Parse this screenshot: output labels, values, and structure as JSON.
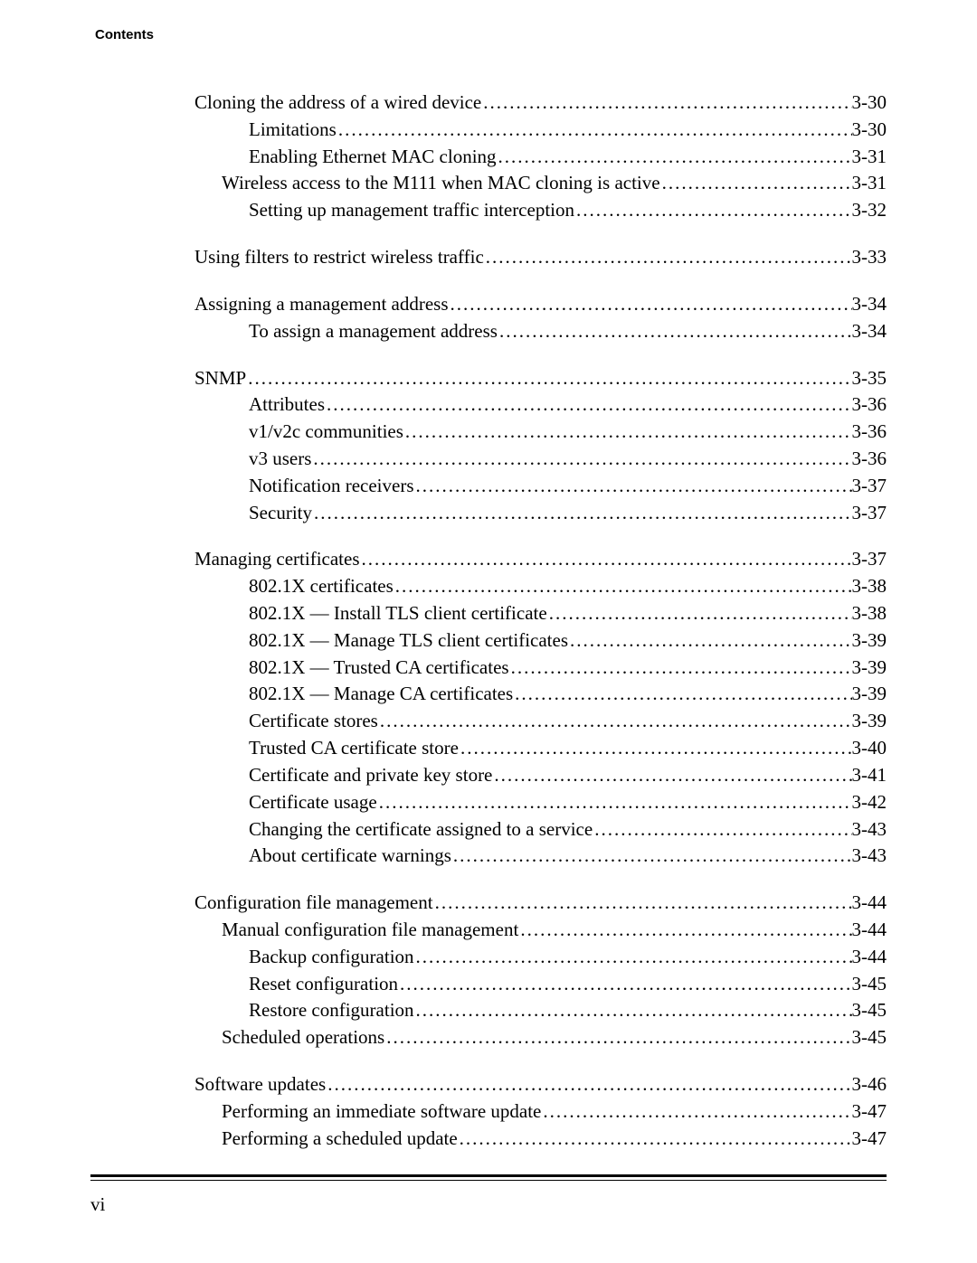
{
  "header": {
    "label": "Contents"
  },
  "footer": {
    "page_number": "vi"
  },
  "toc_sections": [
    {
      "rows": [
        {
          "level": 0,
          "label": "Cloning the address of a wired device",
          "page": "3-30"
        },
        {
          "level": 2,
          "label": "Limitations",
          "page": "3-30"
        },
        {
          "level": 2,
          "label": "Enabling Ethernet MAC cloning",
          "page": "3-31"
        },
        {
          "level": 1,
          "label": "Wireless access to the M111 when MAC cloning is active",
          "page": "3-31"
        },
        {
          "level": 2,
          "label": "Setting up management traffic interception",
          "page": "3-32"
        }
      ]
    },
    {
      "rows": [
        {
          "level": 0,
          "label": "Using filters to restrict wireless traffic",
          "page": "3-33"
        }
      ]
    },
    {
      "rows": [
        {
          "level": 0,
          "label": "Assigning a management address",
          "page": "3-34"
        },
        {
          "level": 2,
          "label": "To assign a management address",
          "page": "3-34"
        }
      ]
    },
    {
      "rows": [
        {
          "level": 0,
          "label": "SNMP",
          "page": "3-35"
        },
        {
          "level": 2,
          "label": "Attributes",
          "page": "3-36"
        },
        {
          "level": 2,
          "label": "v1/v2c communities",
          "page": "3-36"
        },
        {
          "level": 2,
          "label": "v3 users",
          "page": "3-36"
        },
        {
          "level": 2,
          "label": "Notification receivers",
          "page": "3-37"
        },
        {
          "level": 2,
          "label": "Security",
          "page": "3-37"
        }
      ]
    },
    {
      "rows": [
        {
          "level": 0,
          "label": "Managing certificates",
          "page": "3-37"
        },
        {
          "level": 2,
          "label": "802.1X certificates",
          "page": "3-38"
        },
        {
          "level": 3,
          "label": "802.1X — Install TLS client certificate",
          "page": "3-38"
        },
        {
          "level": 3,
          "label": "802.1X — Manage TLS client certificates",
          "page": "3-39"
        },
        {
          "level": 3,
          "label": "802.1X — Trusted CA certificates",
          "page": "3-39"
        },
        {
          "level": 3,
          "label": "802.1X — Manage CA certificates",
          "page": "3-39"
        },
        {
          "level": 2,
          "label": "Certificate stores",
          "page": "3-39"
        },
        {
          "level": 3,
          "label": "Trusted CA certificate store",
          "page": "3-40"
        },
        {
          "level": 3,
          "label": "Certificate and private key store",
          "page": "3-41"
        },
        {
          "level": 2,
          "label": "Certificate usage",
          "page": "3-42"
        },
        {
          "level": 3,
          "label": "Changing the certificate assigned to a service",
          "page": "3-43"
        },
        {
          "level": 3,
          "label": "About certificate warnings",
          "page": "3-43"
        }
      ]
    },
    {
      "rows": [
        {
          "level": 0,
          "label": "Configuration file management",
          "page": "3-44"
        },
        {
          "level": 1,
          "label": "Manual configuration file management",
          "page": "3-44"
        },
        {
          "level": 2,
          "label": "Backup configuration",
          "page": "3-44"
        },
        {
          "level": 2,
          "label": "Reset configuration",
          "page": "3-45"
        },
        {
          "level": 2,
          "label": "Restore configuration",
          "page": "3-45"
        },
        {
          "level": 1,
          "label": "Scheduled operations",
          "page": "3-45"
        }
      ]
    },
    {
      "rows": [
        {
          "level": 0,
          "label": "Software updates",
          "page": "3-46"
        },
        {
          "level": 1,
          "label": "Performing an immediate software update",
          "page": "3-47"
        },
        {
          "level": 1,
          "label": "Performing a scheduled update",
          "page": "3-47"
        }
      ]
    }
  ]
}
